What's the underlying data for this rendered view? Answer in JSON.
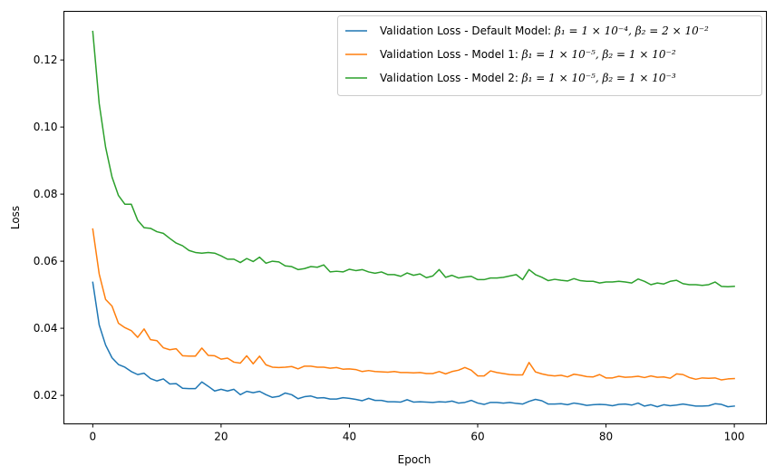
{
  "chart_data": {
    "type": "line",
    "title": "",
    "xlabel": "Epoch",
    "ylabel": "Loss",
    "xlim": [
      -4.5,
      105
    ],
    "ylim": [
      0.0115,
      0.1345
    ],
    "xticks": [
      0,
      20,
      40,
      60,
      80,
      100
    ],
    "xtick_labels": [
      "0",
      "20",
      "40",
      "60",
      "80",
      "100"
    ],
    "yticks": [
      0.02,
      0.04,
      0.06,
      0.08,
      0.1,
      0.12
    ],
    "ytick_labels": [
      "0.02",
      "0.04",
      "0.06",
      "0.08",
      "0.10",
      "0.12"
    ],
    "grid": false,
    "legend_position": "top-right",
    "x": [
      0,
      1,
      2,
      3,
      4,
      5,
      6,
      7,
      8,
      9,
      10,
      11,
      12,
      13,
      14,
      15,
      16,
      17,
      18,
      19,
      20,
      21,
      22,
      23,
      24,
      25,
      26,
      27,
      28,
      29,
      30,
      31,
      32,
      33,
      34,
      35,
      36,
      37,
      38,
      39,
      40,
      41,
      42,
      43,
      44,
      45,
      46,
      47,
      48,
      49,
      50,
      51,
      52,
      53,
      54,
      55,
      56,
      57,
      58,
      59,
      60,
      61,
      62,
      63,
      64,
      65,
      66,
      67,
      68,
      69,
      70,
      71,
      72,
      73,
      74,
      75,
      76,
      77,
      78,
      79,
      80,
      81,
      82,
      83,
      84,
      85,
      86,
      87,
      88,
      89,
      90,
      91,
      92,
      93,
      94,
      95,
      96,
      97,
      98,
      99,
      100
    ],
    "series": [
      {
        "name": "Validation Loss - Default Model: β1 = 1 × 10^-4, β2 = 2 × 10^-2",
        "legend_prefix": "Validation Loss - Default Model: ",
        "legend_math": "β₁ = 1 × 10⁻⁴, β₂ = 2 × 10⁻²",
        "color": "#1f77b4",
        "values": [
          0.0537,
          0.041,
          0.035,
          0.0312,
          0.0292,
          0.0284,
          0.0271,
          0.0262,
          0.0266,
          0.025,
          0.0243,
          0.0249,
          0.0234,
          0.0235,
          0.0221,
          0.022,
          0.022,
          0.024,
          0.0227,
          0.0213,
          0.0218,
          0.0213,
          0.0218,
          0.0202,
          0.0212,
          0.0208,
          0.0212,
          0.0202,
          0.0194,
          0.0197,
          0.0207,
          0.0202,
          0.019,
          0.0196,
          0.0198,
          0.0192,
          0.0193,
          0.0189,
          0.0189,
          0.0193,
          0.0191,
          0.0188,
          0.0184,
          0.0191,
          0.0185,
          0.0185,
          0.0181,
          0.0181,
          0.018,
          0.0187,
          0.018,
          0.0181,
          0.018,
          0.0179,
          0.0181,
          0.018,
          0.0183,
          0.0177,
          0.0179,
          0.0185,
          0.0177,
          0.0173,
          0.0179,
          0.0179,
          0.0177,
          0.0179,
          0.0176,
          0.0174,
          0.0182,
          0.0188,
          0.0184,
          0.0174,
          0.0174,
          0.0175,
          0.0172,
          0.0177,
          0.0174,
          0.017,
          0.0172,
          0.0173,
          0.0172,
          0.0169,
          0.0173,
          0.0174,
          0.0171,
          0.0177,
          0.0168,
          0.0172,
          0.0166,
          0.0172,
          0.0169,
          0.0171,
          0.0174,
          0.0171,
          0.0168,
          0.0168,
          0.0169,
          0.0175,
          0.0173,
          0.0166,
          0.0168
        ]
      },
      {
        "name": "Validation Loss - Model 1: β1 = 1 × 10^-5, β2 = 1 × 10^-2",
        "legend_prefix": "Validation Loss - Model 1: ",
        "legend_math": "β₁ = 1 × 10⁻⁵, β₂ = 1 × 10⁻²",
        "color": "#ff7f0e",
        "values": [
          0.0696,
          0.0562,
          0.0486,
          0.0466,
          0.0415,
          0.0402,
          0.0393,
          0.0373,
          0.0398,
          0.0366,
          0.0363,
          0.0342,
          0.0336,
          0.0339,
          0.0318,
          0.0317,
          0.0317,
          0.0341,
          0.0319,
          0.0318,
          0.0308,
          0.0311,
          0.0299,
          0.0296,
          0.0318,
          0.0294,
          0.0317,
          0.0291,
          0.0284,
          0.0283,
          0.0284,
          0.0286,
          0.0279,
          0.0287,
          0.0287,
          0.0284,
          0.0284,
          0.0281,
          0.0283,
          0.0278,
          0.0279,
          0.0277,
          0.0271,
          0.0274,
          0.0271,
          0.027,
          0.0269,
          0.0271,
          0.0268,
          0.0268,
          0.0267,
          0.0268,
          0.0265,
          0.0265,
          0.0271,
          0.0264,
          0.0271,
          0.0275,
          0.0283,
          0.0275,
          0.0258,
          0.0258,
          0.0273,
          0.0268,
          0.0265,
          0.0262,
          0.0261,
          0.0261,
          0.0298,
          0.027,
          0.0264,
          0.026,
          0.0258,
          0.026,
          0.0255,
          0.0263,
          0.026,
          0.0256,
          0.0255,
          0.0262,
          0.0252,
          0.0252,
          0.0257,
          0.0254,
          0.0255,
          0.0257,
          0.0253,
          0.0258,
          0.0254,
          0.0255,
          0.0251,
          0.0264,
          0.0262,
          0.0253,
          0.0248,
          0.0252,
          0.0251,
          0.0252,
          0.0246,
          0.0249,
          0.025
        ]
      },
      {
        "name": "Validation Loss - Model 2: β1 = 1 × 10^-5, β2 = 1 × 10^-3",
        "legend_prefix": "Validation Loss - Model 2: ",
        "legend_math": "β₁ = 1 × 10⁻⁵, β₂ = 1 × 10⁻³",
        "color": "#2ca02c",
        "values": [
          0.1285,
          0.107,
          0.094,
          0.0851,
          0.0796,
          0.077,
          0.077,
          0.0722,
          0.07,
          0.0698,
          0.0688,
          0.0683,
          0.0668,
          0.0654,
          0.0646,
          0.0632,
          0.0626,
          0.0624,
          0.0626,
          0.0624,
          0.0616,
          0.0606,
          0.0606,
          0.0596,
          0.0608,
          0.0599,
          0.0612,
          0.0594,
          0.06,
          0.0598,
          0.0586,
          0.0584,
          0.0575,
          0.0578,
          0.0584,
          0.0582,
          0.0589,
          0.0568,
          0.057,
          0.0568,
          0.0576,
          0.0572,
          0.0575,
          0.0568,
          0.0564,
          0.0568,
          0.056,
          0.056,
          0.0555,
          0.0565,
          0.0558,
          0.0562,
          0.0551,
          0.0556,
          0.0575,
          0.0552,
          0.0558,
          0.055,
          0.0553,
          0.0555,
          0.0545,
          0.0545,
          0.055,
          0.055,
          0.0552,
          0.0556,
          0.056,
          0.0545,
          0.0575,
          0.056,
          0.0552,
          0.0542,
          0.0546,
          0.0543,
          0.0541,
          0.0548,
          0.0542,
          0.054,
          0.054,
          0.0535,
          0.0538,
          0.0538,
          0.054,
          0.0538,
          0.0535,
          0.0547,
          0.054,
          0.053,
          0.0535,
          0.0532,
          0.054,
          0.0543,
          0.0533,
          0.053,
          0.053,
          0.0528,
          0.053,
          0.0538,
          0.0525,
          0.0524,
          0.0525
        ]
      }
    ]
  }
}
